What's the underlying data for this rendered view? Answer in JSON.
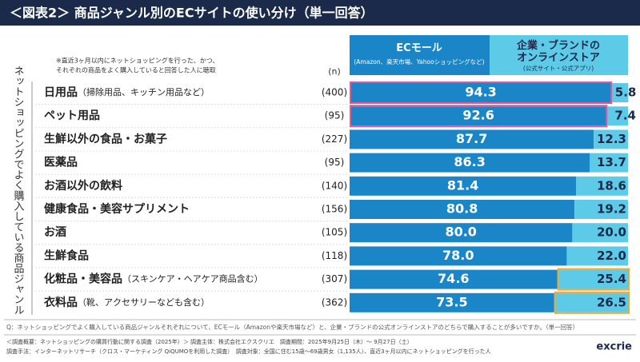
{
  "chart_data": {
    "type": "stacked_bar_h",
    "title": "＜図表2＞ 商品ジャンル別のECサイトの使い分け（単一回答）",
    "y_axis_label": "ネットショッピングでよく購入している商品ジャンル",
    "note": [
      "※直近3ヶ月以内にネットショッピングを行った、かつ、",
      "それぞれの商品をよく購入していると回答した人に聴取"
    ],
    "categories": [
      "日用品",
      "ペット用品",
      "生鮮以外の食品・お菓子",
      "医薬品",
      "お酒以外の飲料",
      "健康食品・美容サプリメント",
      "お酒",
      "生鮮食品",
      "化粧品・美容品",
      "衣料品"
    ],
    "category_notes": [
      "（掃除用品、キッチン用品など）",
      null,
      null,
      null,
      null,
      null,
      null,
      null,
      "（スキンケア・ヘアケア商品含む）",
      "（靴、アクセサリーなども含む）"
    ],
    "n": {
      "label": "(n)",
      "values": [
        400,
        95,
        227,
        95,
        140,
        156,
        105,
        118,
        307,
        362
      ],
      "value_labels": [
        "(400)",
        "(95)",
        "(227)",
        "(95)",
        "(140)",
        "(156)",
        "(105)",
        "(118)",
        "(307)",
        "(362)"
      ]
    },
    "xlim": [
      0,
      100
    ],
    "series": [
      {
        "name": "ECモール",
        "subtitle": "(Amazon、楽天市場、Yahooショッピングなど)",
        "color": "#1a86c8",
        "values": [
          94.3,
          92.6,
          87.7,
          86.3,
          81.4,
          80.8,
          80.0,
          78.0,
          74.6,
          73.5
        ],
        "value_labels": [
          "94.3",
          "92.6",
          "87.7",
          "86.3",
          "81.4",
          "80.8",
          "80.0",
          "78.0",
          "74.6",
          "73.5"
        ]
      },
      {
        "name": "企業・ブランドの\nオンラインストア",
        "subtitle": "(公式サイト・公式アプリ)",
        "color": "#5dcbe8",
        "values": [
          5.8,
          7.4,
          12.3,
          13.7,
          18.6,
          19.2,
          20.0,
          22.0,
          25.4,
          26.5
        ],
        "value_labels": [
          "5.8",
          "7.4",
          "12.3",
          "13.7",
          "18.6",
          "19.2",
          "20.0",
          "22.0",
          "25.4",
          "26.5"
        ]
      }
    ],
    "highlights": [
      {
        "series": 0,
        "rows": [
          0,
          1
        ],
        "color": "#e0589a"
      },
      {
        "series": 1,
        "rows": [
          8,
          9
        ],
        "color": "#f0a830"
      }
    ],
    "question": "Q：ネットショッピングでよく購入している商品ジャンルそれぞれについて、ECモール（Amazonや楽天市場など）と、企業・ブランドの公式オンラインストアのどちらで購入することが多いですか。（単一回答）",
    "footer": [
      "＜調査概要：ネットショッピングの購買行動に関する調査（2025年）＞ 調査主体：株式会社エクスクリエ　調査期間：2025年9月25日（木）～ 9月27日（土）",
      "調査手法：インターネットリサーチ（クロス・マーケティング QiQUMOを利用した調査）　調査対象：全国に住む15歳～69歳男女（1,135人）、直近3ヶ月以内にネットショッピングを行った人"
    ],
    "logo": "excrie"
  }
}
